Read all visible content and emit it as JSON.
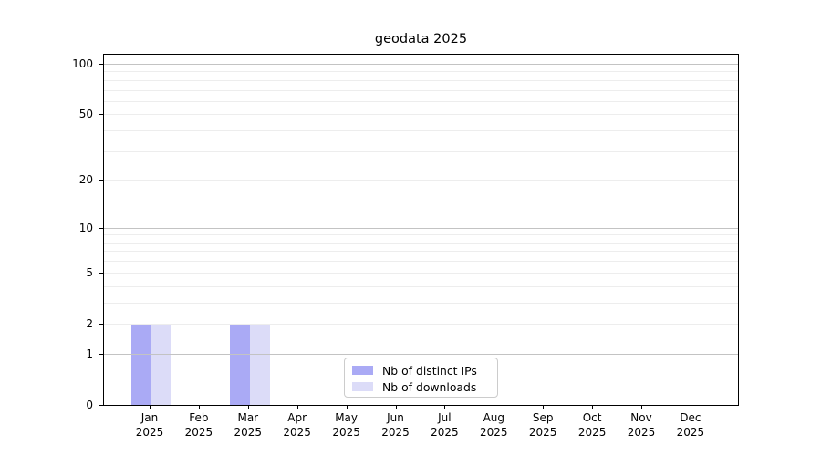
{
  "chart_data": {
    "type": "bar",
    "title": "geodata 2025",
    "categories": [
      "Jan 2025",
      "Feb 2025",
      "Mar 2025",
      "Apr 2025",
      "May 2025",
      "Jun 2025",
      "Jul 2025",
      "Aug 2025",
      "Sep 2025",
      "Oct 2025",
      "Nov 2025",
      "Dec 2025"
    ],
    "series": [
      {
        "name": "Nb of distinct IPs",
        "color": "#aaaaf5",
        "values": [
          2,
          0,
          2,
          0,
          0,
          0,
          0,
          0,
          0,
          0,
          0,
          0
        ]
      },
      {
        "name": "Nb of downloads",
        "color": "#dcdcf8",
        "values": [
          2,
          0,
          2,
          0,
          0,
          0,
          0,
          0,
          0,
          0,
          0,
          0
        ]
      }
    ],
    "yscale": "log1p",
    "ylim": [
      0,
      115
    ],
    "yticks": [
      0,
      1,
      2,
      5,
      10,
      20,
      50,
      100
    ],
    "major_gridlines": [
      1,
      10,
      100
    ],
    "minor_gridlines": [
      2,
      3,
      4,
      5,
      6,
      7,
      8,
      9,
      20,
      30,
      40,
      50,
      60,
      70,
      80,
      90
    ],
    "grid": true,
    "legend_position": "lower center"
  },
  "colors": {
    "spine": "#000000",
    "major_grid": "#c3c3c3",
    "minor_grid": "#ededed",
    "background": "#ffffff"
  }
}
